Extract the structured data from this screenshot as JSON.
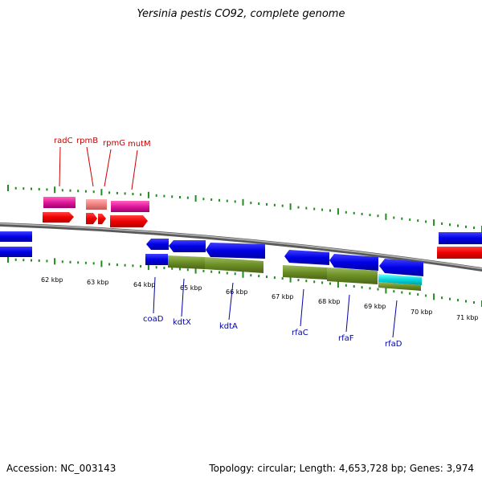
{
  "title": "Yersinia pestis CO92, complete genome",
  "footer": {
    "accession": "Accession: NC_003143",
    "topology": "Topology: circular; Length: 4,653,728 bp; Genes: 3,974"
  },
  "colors": {
    "top_gene_label": "#cc0000",
    "bottom_gene_label": "#0000aa",
    "tick": "#228b22",
    "backbone": "#8a8a8a"
  },
  "scale": {
    "unit": "kbp",
    "labels": [
      {
        "kbp": 62,
        "text": "62 kbp"
      },
      {
        "kbp": 63,
        "text": "63 kbp"
      },
      {
        "kbp": 64,
        "text": "64 kbp"
      },
      {
        "kbp": 65,
        "text": "65 kbp"
      },
      {
        "kbp": 66,
        "text": "66 kbp"
      },
      {
        "kbp": 67,
        "text": "67 kbp"
      },
      {
        "kbp": 68,
        "text": "68 kbp"
      },
      {
        "kbp": 69,
        "text": "69 kbp"
      },
      {
        "kbp": 70,
        "text": "70 kbp"
      },
      {
        "kbp": 71,
        "text": "71 kbp"
      }
    ]
  },
  "gene_labels_top": [
    "radC",
    "rpmB",
    "rpmG",
    "mutM"
  ],
  "gene_labels_bottom": [
    "coaD",
    "kdtX",
    "kdtA",
    "rfaC",
    "rfaF",
    "rfaD"
  ]
}
